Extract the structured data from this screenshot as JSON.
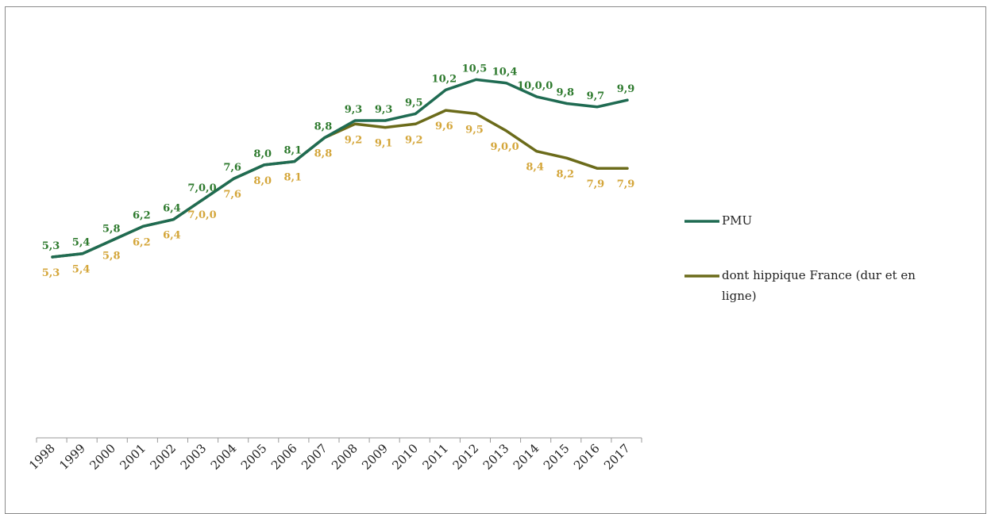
{
  "chart_data": {
    "type": "line",
    "title": "",
    "xlabel": "",
    "ylabel": "",
    "categories": [
      "1998",
      "1999",
      "2000",
      "2001",
      "2002",
      "2003",
      "2004",
      "2005",
      "2006",
      "2007",
      "2008",
      "2009",
      "2010",
      "2011",
      "2012",
      "2013",
      "2014",
      "2015",
      "2016",
      "2017"
    ],
    "series": [
      {
        "name": "PMU",
        "color": "#1f6b52",
        "label_color": "#2e7a2e",
        "values": [
          5.3,
          5.4,
          5.8,
          6.2,
          6.4,
          7.0,
          7.6,
          8.0,
          8.1,
          8.8,
          9.3,
          9.3,
          9.5,
          10.2,
          10.5,
          10.4,
          10.0,
          9.8,
          9.7,
          9.9
        ],
        "labels": [
          "5,3",
          "5,4",
          "5,8",
          "6,2",
          "6,4",
          "7,0,0",
          "7,6",
          "8,0",
          "8,1",
          "8,8",
          "9,3",
          "9,3",
          "9,5",
          "10,2",
          "10,5",
          "10,4",
          "10,0,0",
          "9,8",
          "9,7",
          "9,9"
        ]
      },
      {
        "name": "dont hippique France (dur et en ligne)",
        "color": "#6b6b1a",
        "label_color": "#d4a63a",
        "values": [
          5.3,
          5.4,
          5.8,
          6.2,
          6.4,
          7.0,
          7.6,
          8.0,
          8.1,
          8.8,
          9.2,
          9.1,
          9.2,
          9.6,
          9.5,
          9.0,
          8.4,
          8.2,
          7.9,
          7.9
        ],
        "labels": [
          "5,3",
          "5,4",
          "5,8",
          "6,2",
          "6,4",
          "7,0,0",
          "7,6",
          "8,0",
          "8,1",
          "8,8",
          "9,2",
          "9,1",
          "9,2",
          "9,6",
          "9,5",
          "9,0,0",
          "8,4",
          "8,2",
          "7,9",
          "7,9"
        ]
      }
    ],
    "legend_position": "right",
    "grid": false
  }
}
